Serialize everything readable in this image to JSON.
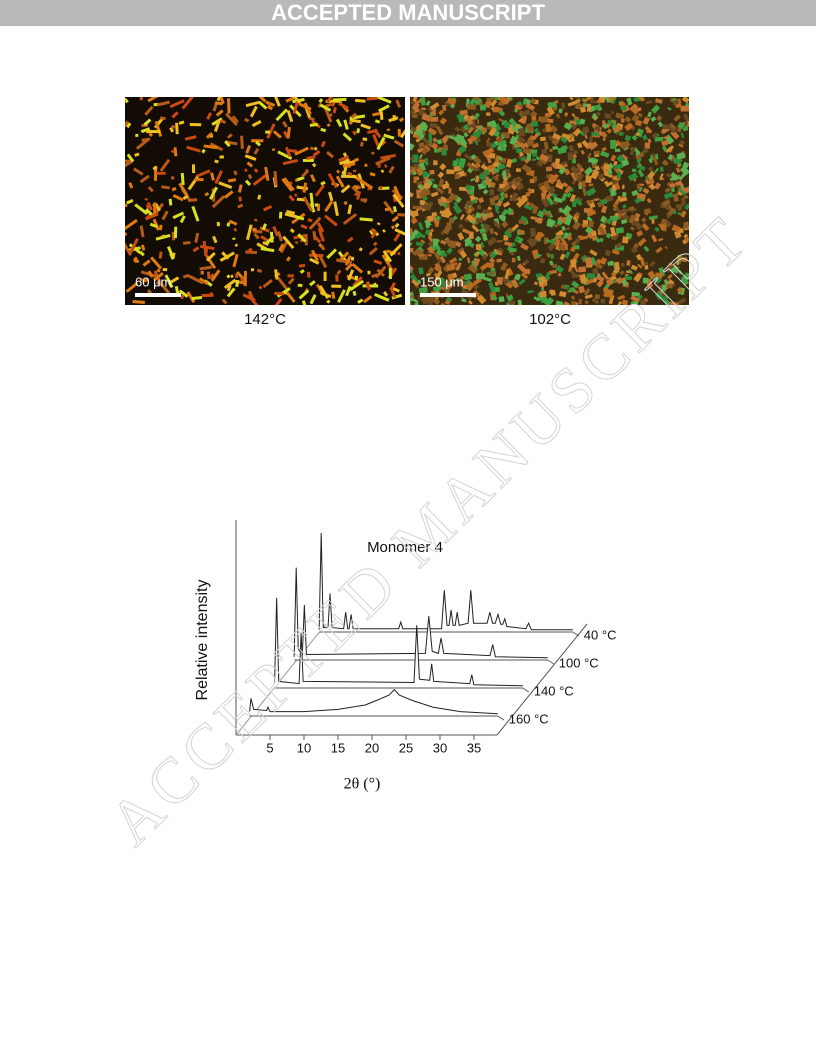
{
  "header": {
    "title": "ACCEPTED MANUSCRIPT"
  },
  "watermark": "ACCEPTED MANUSCRIPT",
  "figure1": {
    "panels": [
      {
        "scale_bar": "60 μm",
        "caption": "142°C"
      },
      {
        "scale_bar": "150 μm",
        "caption": "102°C"
      }
    ]
  },
  "chart_data": {
    "type": "line",
    "title": "Monomer 4",
    "y_label": "Relative intensity",
    "x_label": "2θ (°)",
    "xlim": [
      0,
      38.5
    ],
    "xticks": [
      5,
      10,
      15,
      20,
      25,
      30,
      35
    ],
    "ylim": [
      0,
      100
    ],
    "series": [
      {
        "name": "40 °C",
        "color": "#222222",
        "x": [
          1.2,
          1.5,
          1.8,
          2.5,
          2.8,
          3.1,
          4.8,
          5.1,
          5.4,
          5.6,
          5.9,
          6.2,
          12.9,
          13.2,
          13.5,
          19.2,
          19.6,
          20.0,
          20.3,
          20.6,
          20.9,
          21.2,
          21.5,
          21.8,
          23.1,
          23.5,
          23.9,
          25.9,
          26.3,
          26.7,
          27.1,
          27.5,
          27.9,
          28.2,
          28.5,
          28.8,
          31.6,
          32.0,
          32.4,
          38.5
        ],
        "values": [
          2,
          90,
          4,
          4,
          35,
          4,
          3,
          18,
          3,
          3,
          16,
          3,
          3,
          9,
          3,
          3,
          38,
          6,
          6,
          20,
          6,
          6,
          18,
          6,
          8,
          38,
          8,
          8,
          18,
          8,
          8,
          16,
          7,
          7,
          12,
          5,
          3,
          8,
          2,
          2
        ]
      },
      {
        "name": "100 °C",
        "color": "#222222",
        "x": [
          1.2,
          1.5,
          1.8,
          2.4,
          2.7,
          3.0,
          20.5,
          21.0,
          21.5,
          22.4,
          22.8,
          23.2,
          30.0,
          30.4,
          30.8,
          38.5
        ],
        "values": [
          3,
          84,
          10,
          5,
          50,
          5,
          6,
          40,
          8,
          6,
          20,
          6,
          4,
          14,
          3,
          2
        ]
      },
      {
        "name": "140 °C",
        "color": "#222222",
        "x": [
          2.0,
          2.3,
          2.6,
          5.6,
          5.9,
          6.2,
          22.5,
          22.9,
          23.3,
          24.8,
          25.1,
          25.4,
          30.7,
          31.0,
          31.3,
          38.5
        ],
        "values": [
          5,
          82,
          6,
          4,
          50,
          6,
          5,
          57,
          8,
          7,
          22,
          6,
          4,
          12,
          3,
          2
        ]
      },
      {
        "name": "160 °C",
        "color": "#222222",
        "x": [
          2.0,
          2.2,
          2.6,
          4.5,
          4.7,
          5.0,
          10,
          15,
          19,
          21,
          22.5,
          23.3,
          24,
          26,
          29,
          33,
          38.5
        ],
        "values": [
          4,
          16,
          6,
          5,
          8,
          4,
          4,
          6,
          10,
          15,
          19,
          24,
          19,
          14,
          8,
          4,
          2
        ]
      }
    ]
  }
}
